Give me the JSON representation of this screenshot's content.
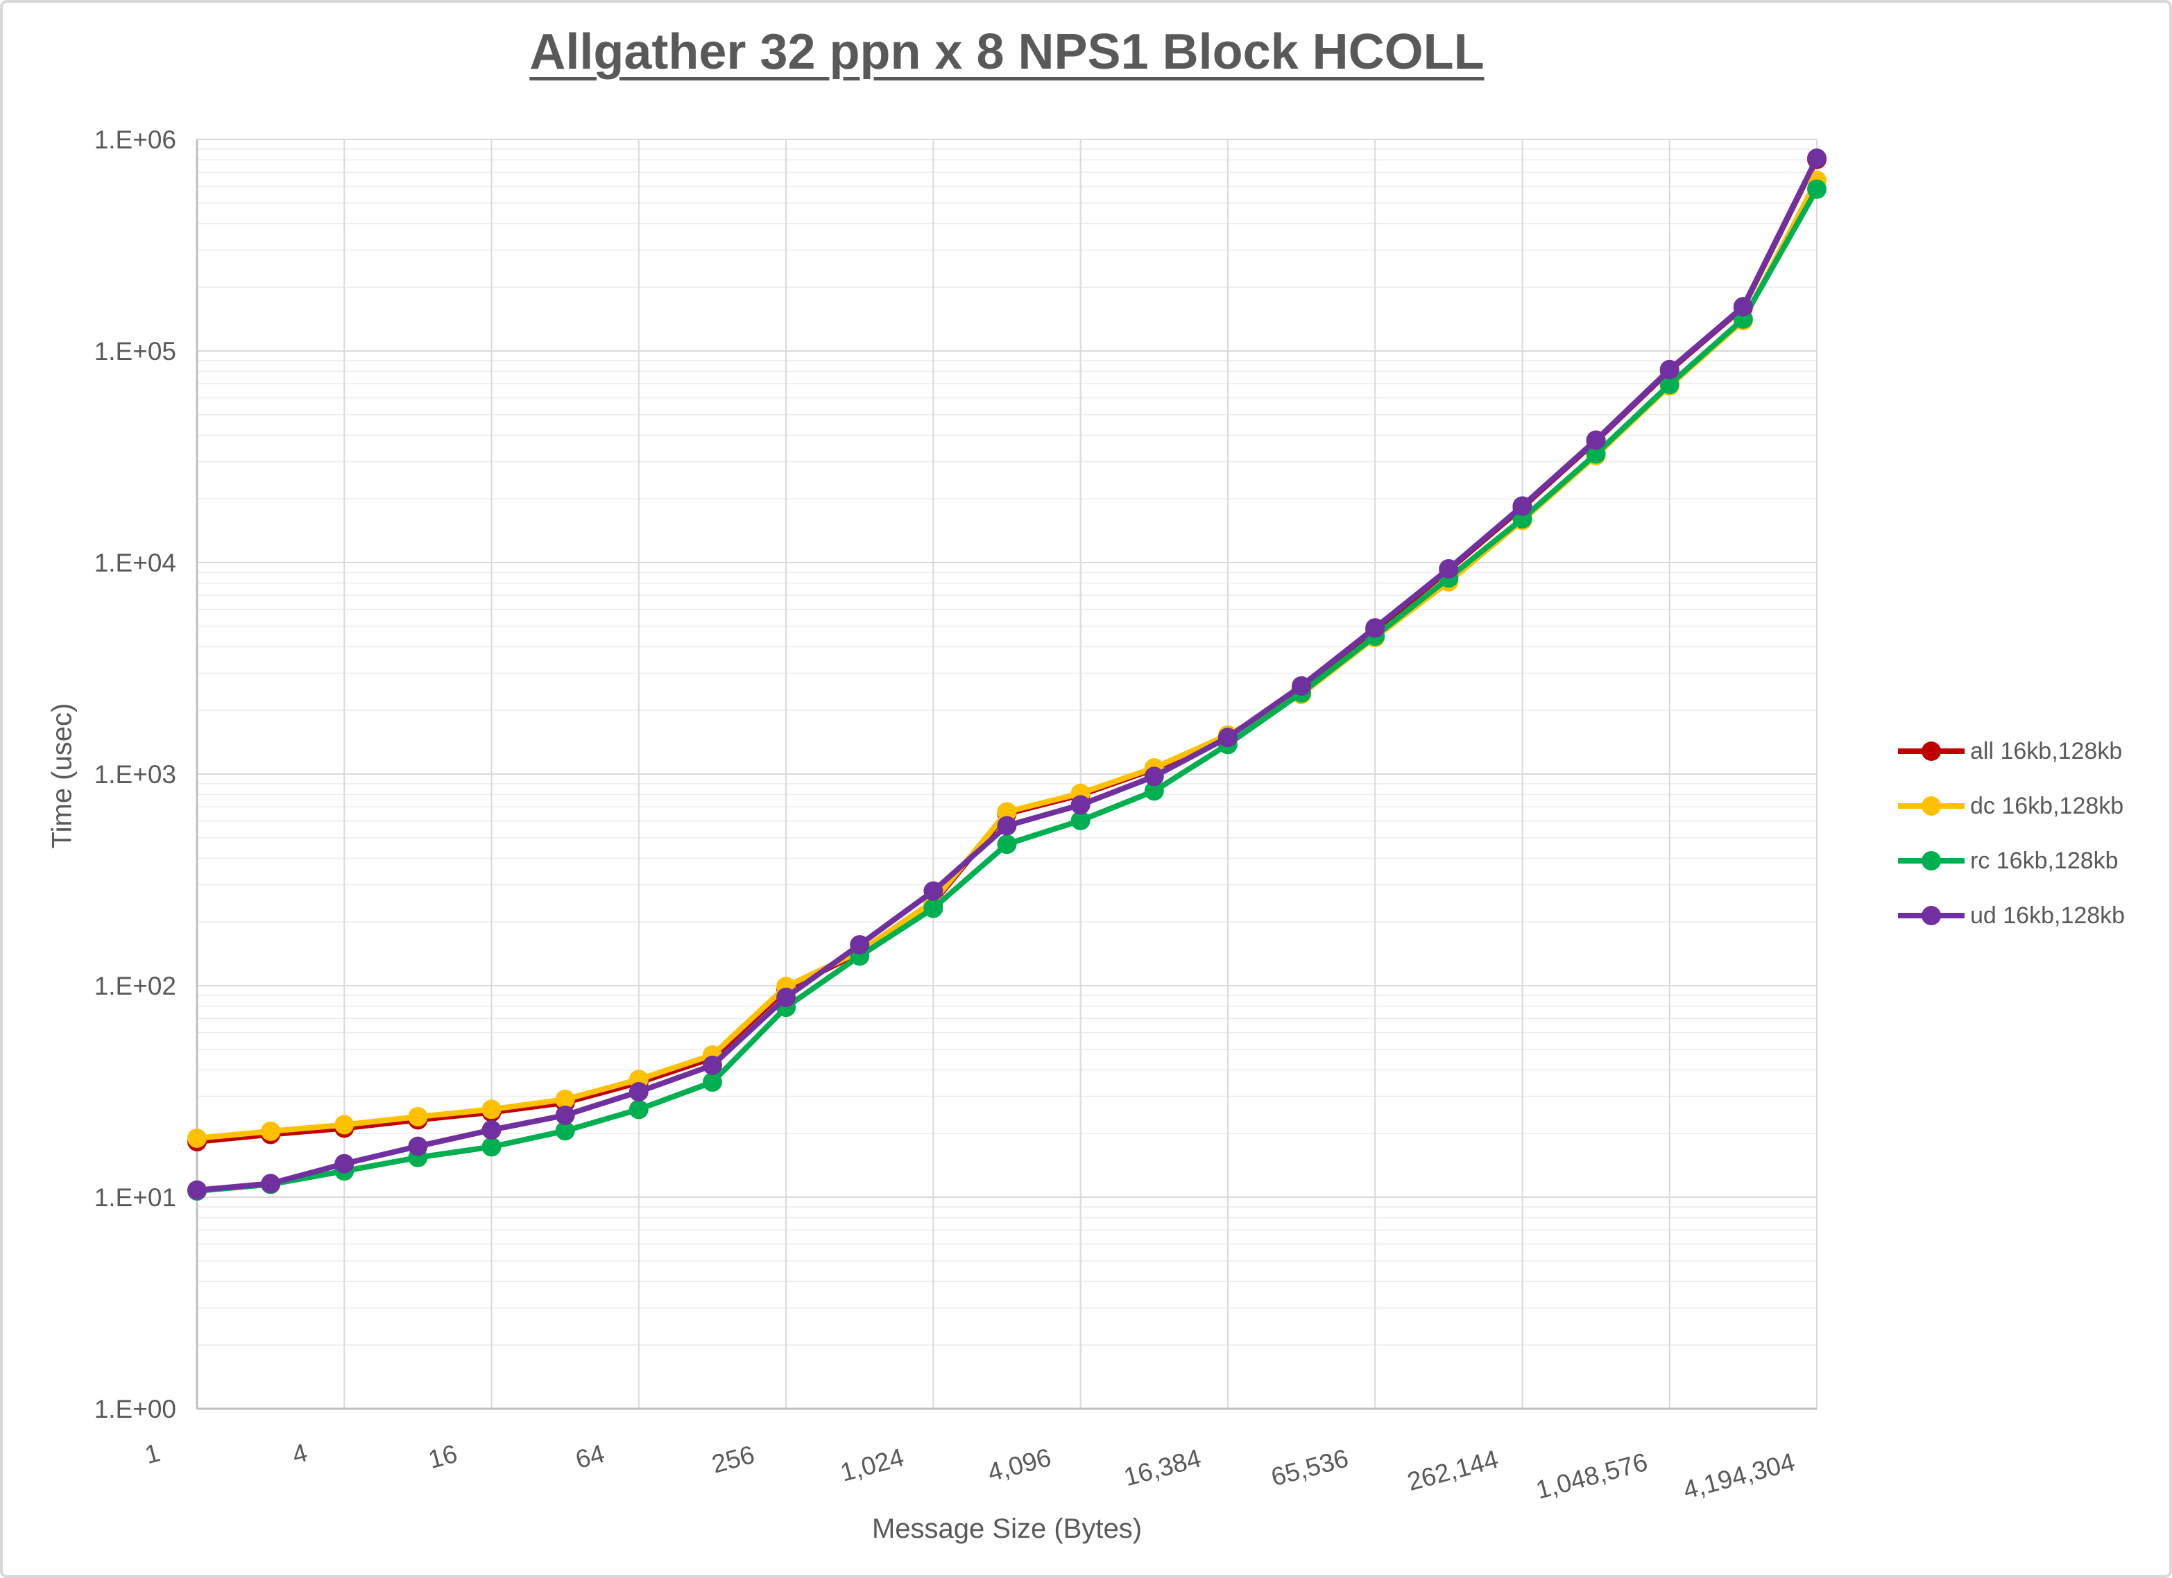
{
  "chart_data": {
    "type": "line",
    "title": "Allgather 32 ppn x 8 NPS1 Block HCOLL",
    "xlabel": "Message Size (Bytes)",
    "ylabel": "Time (usec)",
    "x_scale": "log2 categories",
    "y_scale": "log10",
    "ylim": [
      1,
      1000000
    ],
    "grid": "major and minor horizontal log gridlines, vertical gridlines at labeled ticks",
    "legend_position": "right",
    "y_tick_labels": [
      "1.E+00",
      "1.E+01",
      "1.E+02",
      "1.E+03",
      "1.E+04",
      "1.E+05",
      "1.E+06"
    ],
    "x_tick_labels": [
      "1",
      "4",
      "16",
      "64",
      "256",
      "1,024",
      "4,096",
      "16,384",
      "65,536",
      "262,144",
      "1,048,576",
      "4,194,304"
    ],
    "x": [
      1,
      2,
      4,
      8,
      16,
      32,
      64,
      128,
      256,
      512,
      1024,
      2048,
      4096,
      8192,
      16384,
      32768,
      65536,
      131072,
      262144,
      524288,
      1048576,
      2097152,
      4194304
    ],
    "series": [
      {
        "name": "all 16kb,128kb",
        "color": "#C00000",
        "values": [
          18.3,
          19.8,
          21.2,
          23.2,
          25.2,
          28,
          34.8,
          45.5,
          96,
          143,
          246,
          650,
          797,
          1055,
          1500,
          2550,
          4800,
          9200,
          18200,
          37500,
          80800,
          160500,
          805000
        ]
      },
      {
        "name": "dc 16kb,128kb",
        "color": "#FFC000",
        "values": [
          19,
          20.5,
          22,
          24,
          26,
          29,
          36,
          47,
          99,
          145,
          250,
          663,
          811,
          1070,
          1530,
          2380,
          4420,
          8100,
          15800,
          32000,
          68300,
          139000,
          640000
        ]
      },
      {
        "name": "rc 16kb,128kb",
        "color": "#00B050",
        "values": [
          10.7,
          11.5,
          13.3,
          15.4,
          17.3,
          20.6,
          26,
          35,
          79,
          138,
          232,
          466,
          603,
          832,
          1380,
          2420,
          4490,
          8450,
          16100,
          32600,
          69500,
          141600,
          582000
        ]
      },
      {
        "name": "ud 16kb,128kb",
        "color": "#7030A0",
        "values": [
          10.8,
          11.6,
          14.4,
          17.4,
          20.8,
          24.4,
          31.5,
          42,
          88,
          156,
          280,
          570,
          715,
          975,
          1490,
          2610,
          4910,
          9340,
          18500,
          37900,
          81700,
          162000,
          815000
        ]
      }
    ]
  }
}
